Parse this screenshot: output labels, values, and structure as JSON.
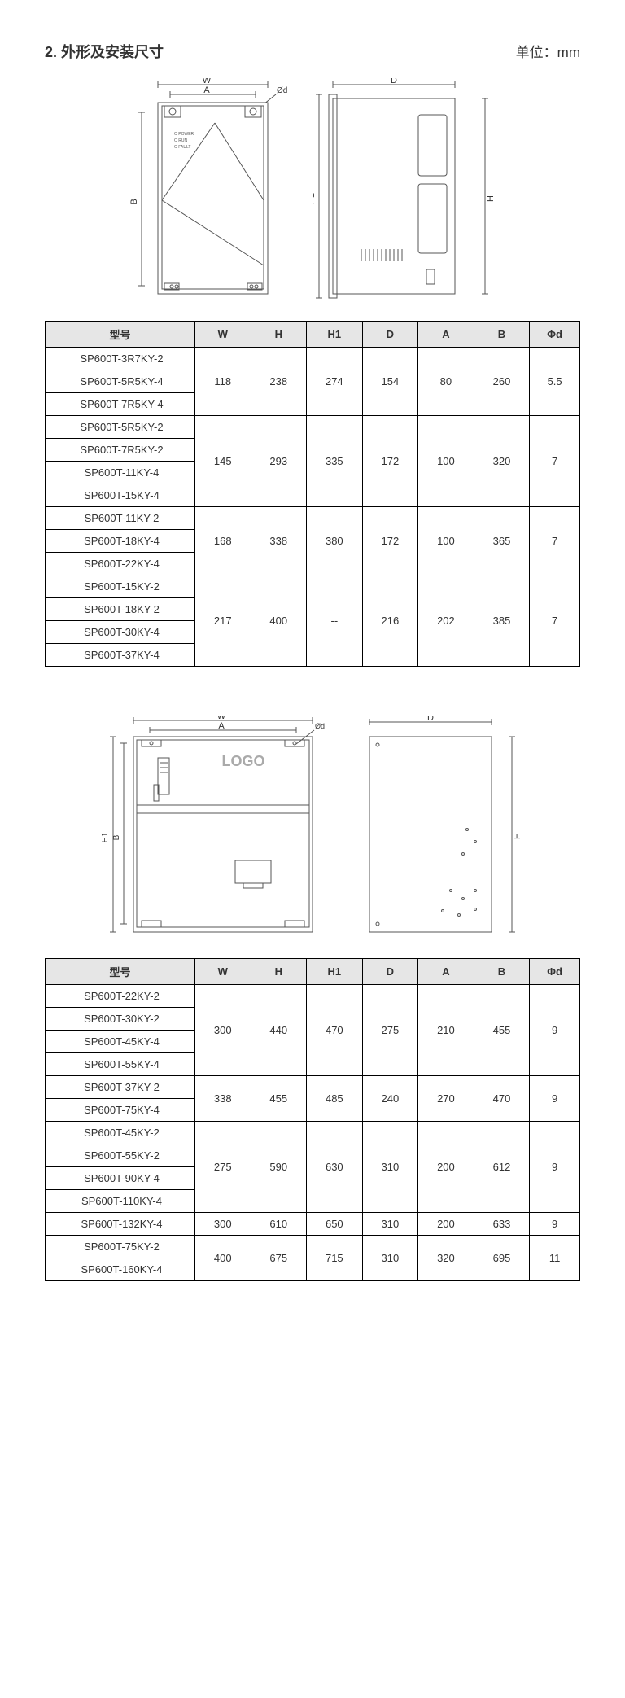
{
  "header": {
    "title": "2. 外形及安装尺寸",
    "unit": "单位：mm"
  },
  "diagrams": {
    "set1": {
      "labels": {
        "W": "W",
        "A": "A",
        "B": "B",
        "D": "D",
        "H": "H",
        "H1": "H1",
        "phi_d": "Ød"
      },
      "indicators": [
        "O POWER",
        "O RUN",
        "O FAULT"
      ]
    },
    "set2": {
      "labels": {
        "W": "W",
        "A": "A",
        "B": "B",
        "D": "D",
        "H": "H",
        "H1": "H1",
        "phi_d": "Ød"
      },
      "logo": "LOGO"
    }
  },
  "table_columns": [
    "型号",
    "W",
    "H",
    "H1",
    "D",
    "A",
    "B",
    "Φd"
  ],
  "table1": {
    "groups": [
      {
        "models": [
          "SP600T-3R7KY-2",
          "SP600T-5R5KY-4",
          "SP600T-7R5KY-4"
        ],
        "W": "118",
        "H": "238",
        "H1": "274",
        "D": "154",
        "A": "80",
        "B": "260",
        "phi_d": "5.5"
      },
      {
        "models": [
          "SP600T-5R5KY-2",
          "SP600T-7R5KY-2",
          "SP600T-11KY-4",
          "SP600T-15KY-4"
        ],
        "W": "145",
        "H": "293",
        "H1": "335",
        "D": "172",
        "A": "100",
        "B": "320",
        "phi_d": "7"
      },
      {
        "models": [
          "SP600T-11KY-2",
          "SP600T-18KY-4",
          "SP600T-22KY-4"
        ],
        "W": "168",
        "H": "338",
        "H1": "380",
        "D": "172",
        "A": "100",
        "B": "365",
        "phi_d": "7"
      },
      {
        "models": [
          "SP600T-15KY-2",
          "SP600T-18KY-2",
          "SP600T-30KY-4",
          "SP600T-37KY-4"
        ],
        "W": "217",
        "H": "400",
        "H1": "--",
        "D": "216",
        "A": "202",
        "B": "385",
        "phi_d": "7"
      }
    ]
  },
  "table2": {
    "groups": [
      {
        "models": [
          "SP600T-22KY-2",
          "SP600T-30KY-2",
          "SP600T-45KY-4",
          "SP600T-55KY-4"
        ],
        "W": "300",
        "H": "440",
        "H1": "470",
        "D": "275",
        "A": "210",
        "B": "455",
        "phi_d": "9"
      },
      {
        "models": [
          "SP600T-37KY-2",
          "SP600T-75KY-4"
        ],
        "W": "338",
        "H": "455",
        "H1": "485",
        "D": "240",
        "A": "270",
        "B": "470",
        "phi_d": "9"
      },
      {
        "models": [
          "SP600T-45KY-2",
          "SP600T-55KY-2",
          "SP600T-90KY-4",
          "SP600T-110KY-4"
        ],
        "W": "275",
        "H": "590",
        "H1": "630",
        "D": "310",
        "A": "200",
        "B": "612",
        "phi_d": "9"
      },
      {
        "models": [
          "SP600T-132KY-4"
        ],
        "W": "300",
        "H": "610",
        "H1": "650",
        "D": "310",
        "A": "200",
        "B": "633",
        "phi_d": "9"
      },
      {
        "models": [
          "SP600T-75KY-2",
          "SP600T-160KY-4"
        ],
        "W": "400",
        "H": "675",
        "H1": "715",
        "D": "310",
        "A": "320",
        "B": "695",
        "phi_d": "11"
      }
    ]
  }
}
